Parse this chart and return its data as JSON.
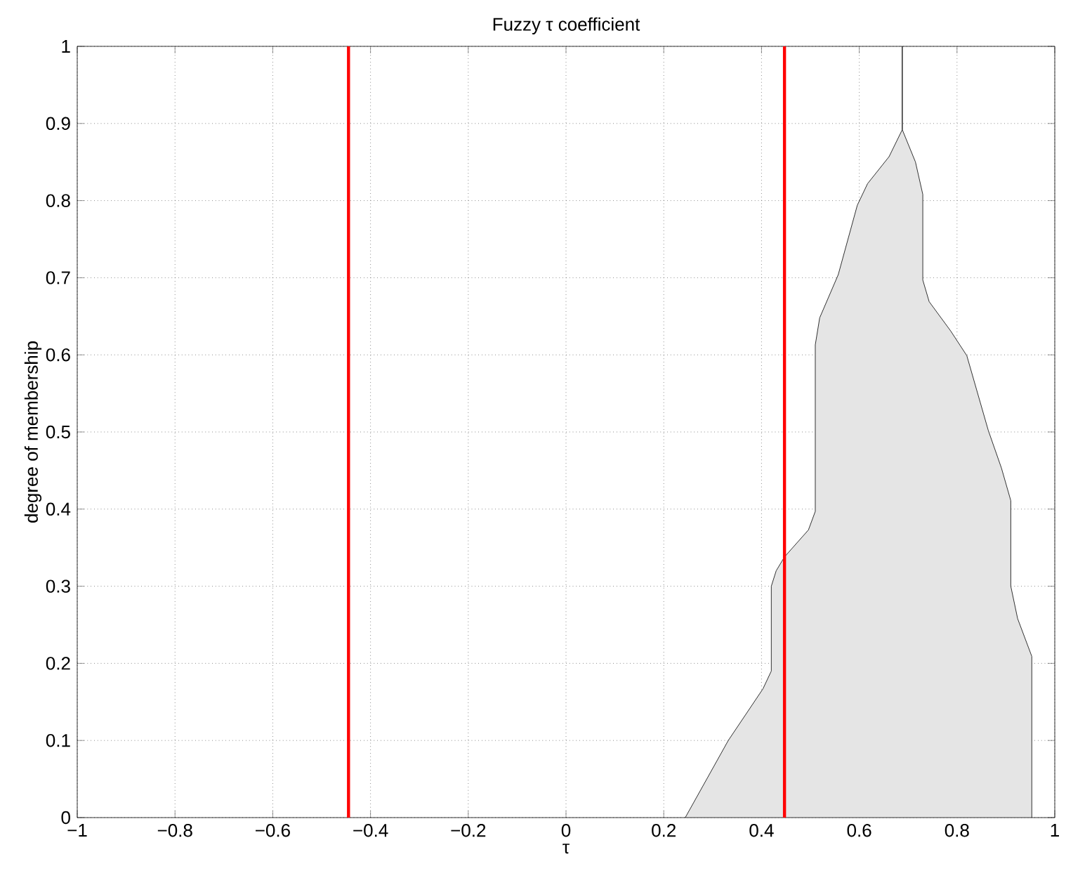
{
  "chart_data": {
    "type": "area",
    "title": "Fuzzy τ coefficient",
    "xlabel": "τ",
    "ylabel": "degree of membership",
    "series": [
      {
        "color": "#e5e5e5",
        "x": [
          0.244,
          0.332,
          0.403,
          0.42,
          0.42,
          0.43,
          0.447,
          0.496,
          0.51,
          0.51,
          0.519,
          0.557,
          0.596,
          0.617,
          0.661,
          0.688,
          0.688,
          0.688,
          0.715,
          0.73,
          0.73,
          0.743,
          0.787,
          0.82,
          0.864,
          0.891,
          0.91,
          0.91,
          0.924,
          0.953,
          0.953
        ],
        "values": [
          0,
          0.1,
          0.167,
          0.19,
          0.3,
          0.32,
          0.338,
          0.373,
          0.397,
          0.613,
          0.648,
          0.704,
          0.794,
          0.822,
          0.857,
          0.892,
          1,
          0.892,
          0.85,
          0.808,
          0.697,
          0.669,
          0.631,
          0.599,
          0.502,
          0.453,
          0.411,
          0.3,
          0.258,
          0.209,
          0
        ]
      }
    ],
    "ref_lines": [
      {
        "axis": "x",
        "value": -0.445,
        "color": "#ff0000"
      },
      {
        "axis": "x",
        "value": 0.447,
        "color": "#ff0000"
      }
    ],
    "xlim": [
      -1,
      1
    ],
    "ylim": [
      0,
      1
    ],
    "xticks": [
      {
        "value": -1,
        "label": "−1"
      },
      {
        "value": -0.8,
        "label": "−0.8"
      },
      {
        "value": -0.6,
        "label": "−0.6"
      },
      {
        "value": -0.4,
        "label": "−0.4"
      },
      {
        "value": -0.2,
        "label": "−0.2"
      },
      0,
      0.2,
      0.4,
      0.6,
      0.8,
      1
    ],
    "yticks": [
      0,
      0.1,
      0.2,
      0.3,
      0.4,
      0.5,
      0.6,
      0.7,
      0.8,
      0.9,
      1
    ],
    "grid": true
  }
}
